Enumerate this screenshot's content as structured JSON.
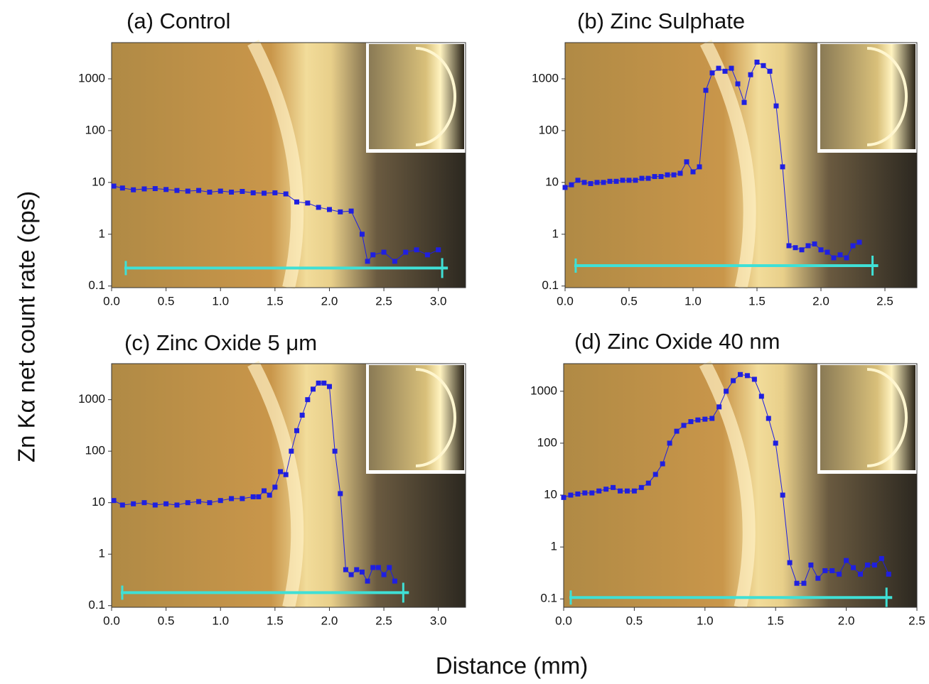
{
  "figure": {
    "xlabel": "Distance (mm)",
    "ylabel": "Zn Kα net count rate (cps)"
  },
  "chart_data": [
    {
      "type": "scatter",
      "title": "(a)  Control",
      "log_y": true,
      "xlim": [
        0,
        3.25
      ],
      "ylim": [
        0.093,
        5000
      ],
      "xticks": [
        {
          "value": 0,
          "label": "0.0"
        },
        0.5,
        {
          "value": 1,
          "label": "1.0"
        },
        1.5,
        {
          "value": 2,
          "label": "2.0"
        },
        2.5,
        {
          "value": 3,
          "label": "3.0"
        }
      ],
      "yticks": [
        0.1,
        1,
        10,
        100,
        1000
      ],
      "x": [
        0.02,
        0.1,
        0.2,
        0.3,
        0.4,
        0.5,
        0.6,
        0.7,
        0.8,
        0.9,
        1.0,
        1.1,
        1.2,
        1.3,
        1.4,
        1.5,
        1.6,
        1.7,
        1.8,
        1.9,
        2.0,
        2.1,
        2.2,
        2.3,
        2.35,
        2.4,
        2.5,
        2.6,
        2.7,
        2.8,
        2.9,
        3.0
      ],
      "series": [
        {
          "color": "#1f1fe0",
          "values": [
            8.5,
            7.8,
            7.2,
            7.5,
            7.6,
            7.3,
            7.0,
            6.8,
            7.0,
            6.5,
            6.8,
            6.5,
            6.7,
            6.3,
            6.2,
            6.3,
            6.0,
            4.2,
            4.0,
            3.3,
            3.0,
            2.7,
            2.8,
            1.0,
            0.3,
            0.4,
            0.45,
            0.3,
            0.45,
            0.5,
            0.4,
            0.5
          ]
        }
      ]
    },
    {
      "type": "scatter",
      "title": "(b)  Zinc Sulphate",
      "log_y": true,
      "xlim": [
        0,
        2.75
      ],
      "ylim": [
        0.093,
        5000
      ],
      "xticks": [
        {
          "value": 0,
          "label": "0.0"
        },
        0.5,
        {
          "value": 1,
          "label": "1.0"
        },
        1.5,
        {
          "value": 2,
          "label": "2.0"
        },
        2.5
      ],
      "yticks": [
        0.1,
        1,
        10,
        100,
        1000
      ],
      "x": [
        0.0,
        0.05,
        0.1,
        0.15,
        0.2,
        0.25,
        0.3,
        0.35,
        0.4,
        0.45,
        0.5,
        0.55,
        0.6,
        0.65,
        0.7,
        0.75,
        0.8,
        0.85,
        0.9,
        0.95,
        1.0,
        1.05,
        1.1,
        1.15,
        1.2,
        1.25,
        1.3,
        1.35,
        1.4,
        1.45,
        1.5,
        1.55,
        1.6,
        1.65,
        1.7,
        1.75,
        1.8,
        1.85,
        1.9,
        1.95,
        2.0,
        2.05,
        2.1,
        2.15,
        2.2,
        2.25,
        2.3
      ],
      "series": [
        {
          "color": "#1f1fe0",
          "values": [
            8,
            9,
            11,
            10,
            9.5,
            10,
            10,
            10.5,
            10.5,
            11,
            11,
            11,
            12,
            12,
            13,
            13,
            14,
            14,
            15,
            25,
            16,
            20,
            600,
            1300,
            1600,
            1400,
            1600,
            800,
            350,
            1200,
            2100,
            1800,
            1400,
            300,
            20,
            0.6,
            0.55,
            0.5,
            0.6,
            0.65,
            0.5,
            0.45,
            0.35,
            0.4,
            0.35,
            0.6,
            0.7
          ]
        }
      ]
    },
    {
      "type": "scatter",
      "title": "(c)  Zinc Oxide 5 μm",
      "log_y": true,
      "xlim": [
        0,
        3.25
      ],
      "ylim": [
        0.093,
        5000
      ],
      "xticks": [
        {
          "value": 0,
          "label": "0.0"
        },
        0.5,
        {
          "value": 1,
          "label": "1.0"
        },
        1.5,
        {
          "value": 2,
          "label": "2.0"
        },
        2.5,
        {
          "value": 3,
          "label": "3.0"
        }
      ],
      "yticks": [
        0.1,
        1,
        10,
        100,
        1000
      ],
      "x": [
        0.02,
        0.1,
        0.2,
        0.3,
        0.4,
        0.5,
        0.6,
        0.7,
        0.8,
        0.9,
        1.0,
        1.1,
        1.2,
        1.3,
        1.35,
        1.4,
        1.45,
        1.5,
        1.55,
        1.6,
        1.65,
        1.7,
        1.75,
        1.8,
        1.85,
        1.9,
        1.95,
        2.0,
        2.05,
        2.1,
        2.15,
        2.2,
        2.25,
        2.3,
        2.35,
        2.4,
        2.45,
        2.5,
        2.55,
        2.6
      ],
      "series": [
        {
          "color": "#1f1fe0",
          "values": [
            11,
            9,
            9.5,
            10,
            9,
            9.5,
            9,
            10,
            10.5,
            10,
            11,
            12,
            12,
            13,
            13,
            17,
            14,
            20,
            40,
            35,
            100,
            250,
            500,
            1000,
            1600,
            2100,
            2100,
            1800,
            100,
            15,
            0.5,
            0.4,
            0.5,
            0.45,
            0.3,
            0.55,
            0.55,
            0.4,
            0.55,
            0.3
          ]
        }
      ]
    },
    {
      "type": "scatter",
      "title": "(d)  Zinc Oxide 40 nm",
      "log_y": true,
      "xlim": [
        0,
        2.5
      ],
      "ylim": [
        0.069,
        3400
      ],
      "xticks": [
        {
          "value": 0,
          "label": "0.0"
        },
        0.5,
        {
          "value": 1,
          "label": "1.0"
        },
        1.5,
        {
          "value": 2,
          "label": "2.0"
        },
        2.5
      ],
      "yticks": [
        0.1,
        1,
        10,
        100,
        1000
      ],
      "x": [
        0.0,
        0.05,
        0.1,
        0.15,
        0.2,
        0.25,
        0.3,
        0.35,
        0.4,
        0.45,
        0.5,
        0.55,
        0.6,
        0.65,
        0.7,
        0.75,
        0.8,
        0.85,
        0.9,
        0.95,
        1.0,
        1.05,
        1.1,
        1.15,
        1.2,
        1.25,
        1.3,
        1.35,
        1.4,
        1.45,
        1.5,
        1.55,
        1.6,
        1.65,
        1.7,
        1.75,
        1.8,
        1.85,
        1.9,
        1.95,
        2.0,
        2.05,
        2.1,
        2.15,
        2.2,
        2.25,
        2.3
      ],
      "series": [
        {
          "color": "#1f1fe0",
          "values": [
            9,
            10,
            10.5,
            11,
            11,
            12,
            13,
            14,
            12,
            12,
            12,
            14,
            17,
            25,
            40,
            100,
            170,
            220,
            260,
            280,
            290,
            300,
            500,
            1000,
            1600,
            2100,
            2000,
            1700,
            800,
            300,
            100,
            10,
            0.5,
            0.2,
            0.2,
            0.45,
            0.25,
            0.35,
            0.35,
            0.3,
            0.55,
            0.4,
            0.3,
            0.45,
            0.45,
            0.6,
            0.3
          ]
        }
      ]
    }
  ]
}
